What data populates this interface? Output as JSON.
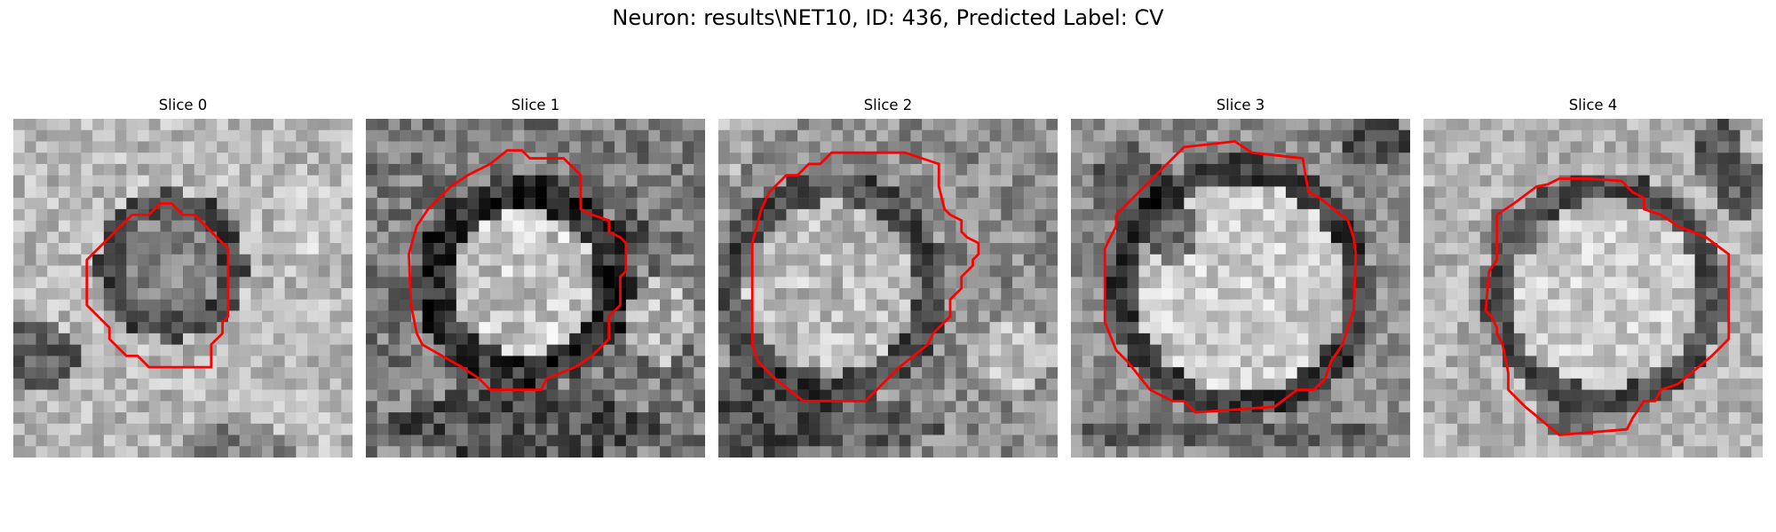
{
  "figure": {
    "title": "Neuron: results\\NET10, ID: 436, Predicted Label: CV",
    "contour_color": "#ff0000",
    "colormap": "grayscale"
  },
  "slices": [
    {
      "title": "Slice 0",
      "image": {
        "type": "grayscale micrograph patch",
        "background": "light gray with mottled texture",
        "feature": "small dark ring-shaped cell with gray interior, centered slightly left of middle"
      }
    },
    {
      "title": "Slice 1",
      "image": {
        "type": "grayscale micrograph patch",
        "background": "darker mottled gray",
        "feature": "bright round cell body with thick dark surrounding membrane, centered"
      }
    },
    {
      "title": "Slice 2",
      "image": {
        "type": "grayscale micrograph patch",
        "background": "mid gray, dark lower-left corner",
        "feature": "large bright cell body spanning left-center of panel"
      }
    },
    {
      "title": "Slice 3",
      "image": {
        "type": "grayscale micrograph patch",
        "background": "medium gray with dark bands top-left and bottom",
        "feature": "large bright round cell body bounded by dark ring"
      }
    },
    {
      "title": "Slice 4",
      "image": {
        "type": "grayscale micrograph patch",
        "background": "light gray with dark diagonal band top-right",
        "feature": "bright round cell body with dark ring, centered"
      }
    }
  ]
}
